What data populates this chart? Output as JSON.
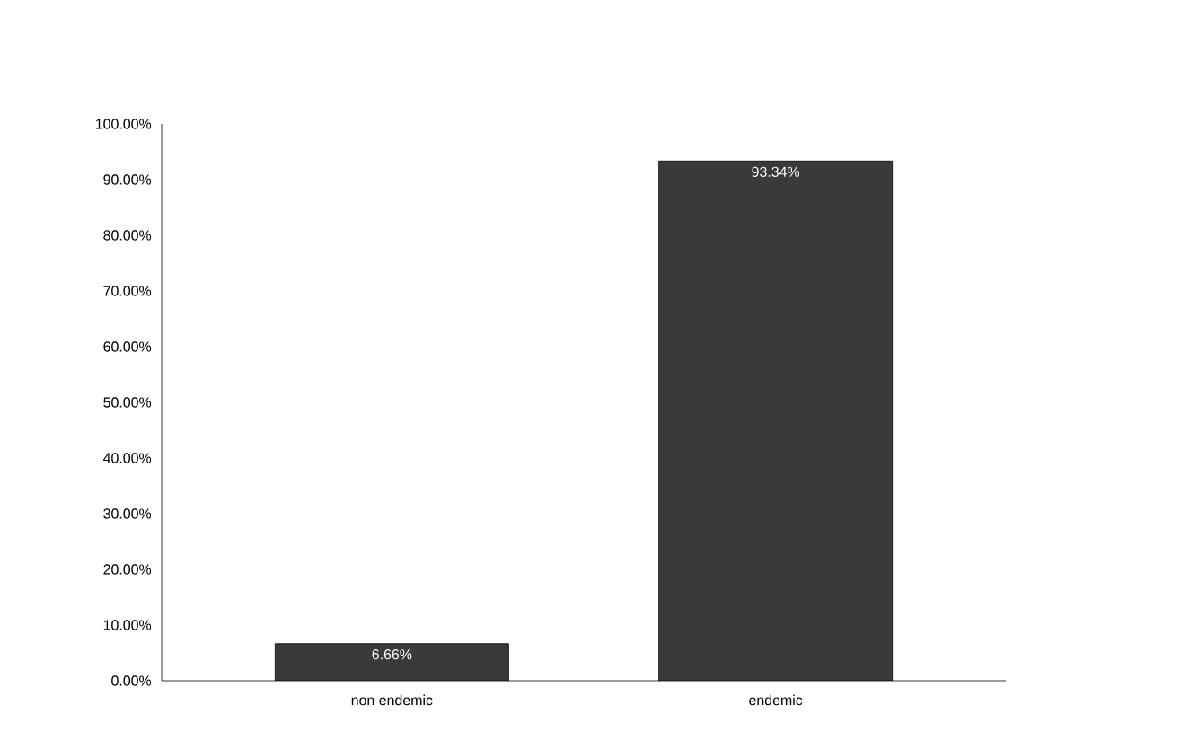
{
  "chart_data": {
    "type": "bar",
    "categories": [
      "non endemic",
      "endemic"
    ],
    "values": [
      6.66,
      93.34
    ],
    "value_labels": [
      "6.66%",
      "93.34%"
    ],
    "color": "#3a3a3a",
    "ylim": [
      0,
      100
    ],
    "yticks": [
      {
        "value": 0,
        "label": "0.00%"
      },
      {
        "value": 10,
        "label": "10.00%"
      },
      {
        "value": 20,
        "label": "20.00%"
      },
      {
        "value": 30,
        "label": "30.00%"
      },
      {
        "value": 40,
        "label": "40.00%"
      },
      {
        "value": 50,
        "label": "50.00%"
      },
      {
        "value": 60,
        "label": "60.00%"
      },
      {
        "value": 70,
        "label": "70.00%"
      },
      {
        "value": 80,
        "label": "80.00%"
      },
      {
        "value": 90,
        "label": "90.00%"
      },
      {
        "value": 100,
        "label": "100.00%"
      }
    ],
    "grid": false
  }
}
